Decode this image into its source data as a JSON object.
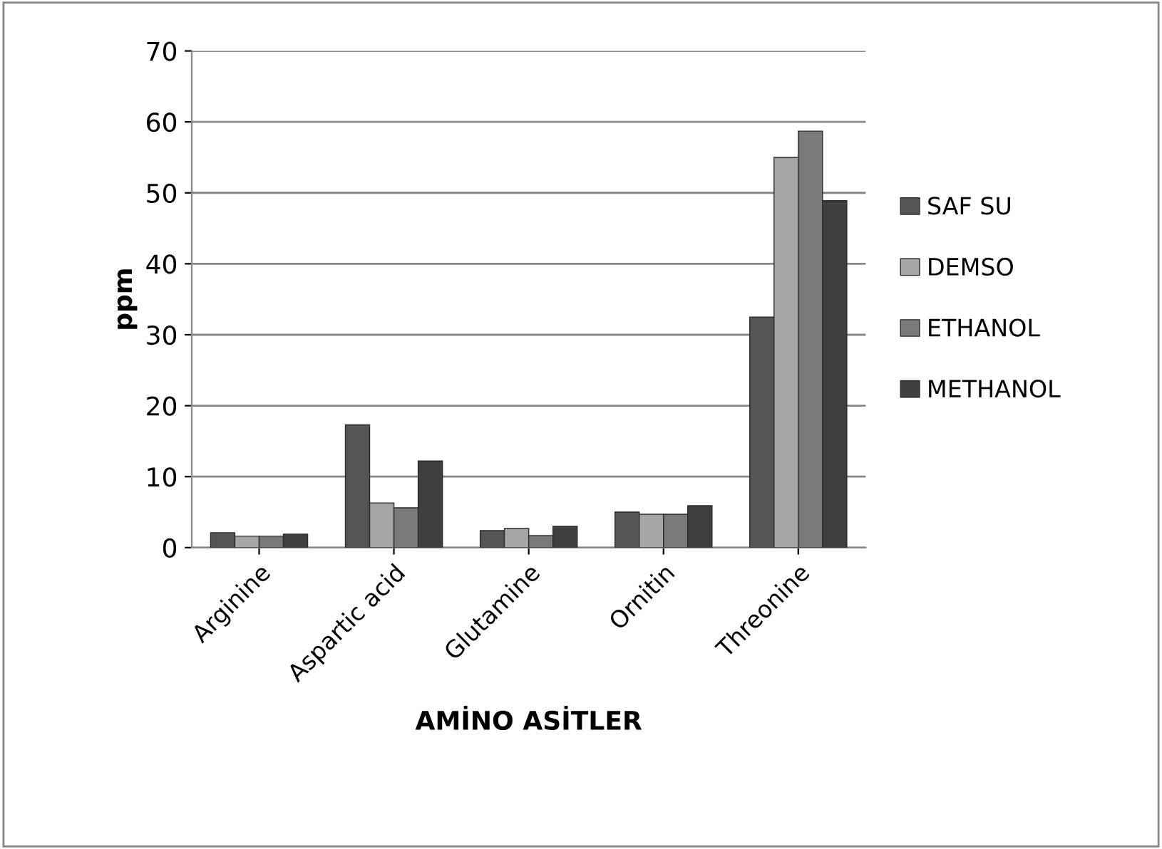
{
  "chart_data": {
    "type": "bar",
    "xlabel": "AMİNO ASİTLER",
    "ylabel": "ppm",
    "categories": [
      "Arginine",
      "Aspartic acid",
      "Glutamine",
      "Ornitin",
      "Threonine"
    ],
    "series": [
      {
        "name": "SAF SU",
        "color": "#555555",
        "values": [
          2.1,
          17.3,
          2.4,
          5.0,
          32.5
        ]
      },
      {
        "name": "DEMSO",
        "color": "#a6a6a6",
        "values": [
          1.6,
          6.3,
          2.7,
          4.7,
          55
        ]
      },
      {
        "name": "ETHANOL",
        "color": "#7a7a7a",
        "values": [
          1.6,
          5.6,
          1.7,
          4.7,
          58.7
        ]
      },
      {
        "name": "METHANOL",
        "color": "#3f3f3f",
        "values": [
          1.9,
          12.2,
          3.0,
          5.9,
          48.9
        ]
      }
    ],
    "ylim": [
      0,
      70
    ],
    "yticks": [
      0,
      10,
      20,
      30,
      40,
      50,
      60,
      70
    ],
    "grid": "y",
    "legend": "right"
  }
}
